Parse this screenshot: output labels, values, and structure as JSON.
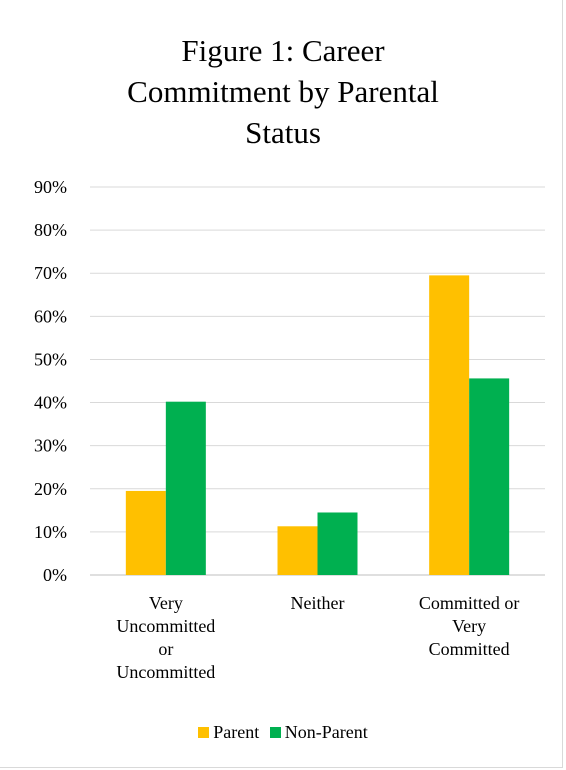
{
  "chart_data": {
    "type": "bar",
    "title_lines": [
      "Figure 1: Career",
      "Commitment by Parental",
      "Status"
    ],
    "categories": [
      [
        "Very",
        "Uncommitted",
        "or",
        "Uncommitted"
      ],
      [
        "Neither"
      ],
      [
        "Committed or",
        "Very",
        "Committed"
      ]
    ],
    "series": [
      {
        "name": "Parent",
        "color": "#ffc000",
        "values": [
          19.5,
          11.3,
          69.5
        ]
      },
      {
        "name": "Non-Parent",
        "color": "#00b050",
        "values": [
          40.2,
          14.5,
          45.6
        ]
      }
    ],
    "yticks": [
      "0%",
      "10%",
      "20%",
      "30%",
      "40%",
      "50%",
      "60%",
      "70%",
      "80%",
      "90%"
    ],
    "ylim": [
      0,
      90
    ],
    "grid": true,
    "legend_position": "bottom"
  }
}
